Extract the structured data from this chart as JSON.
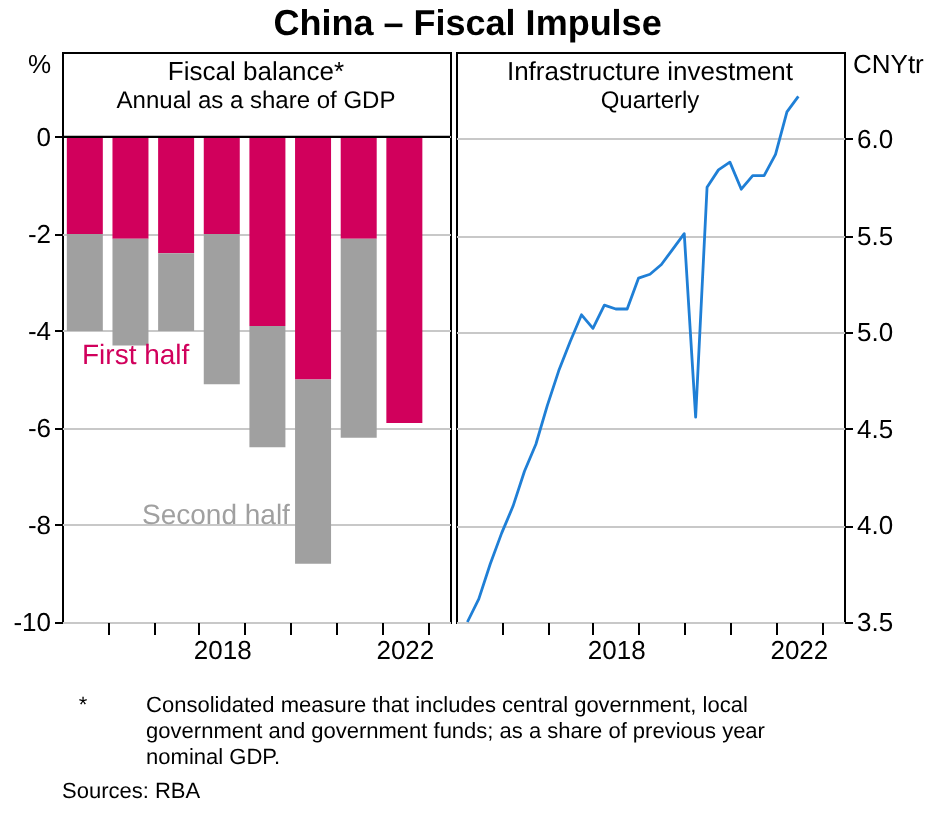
{
  "chart_data": [
    {
      "type": "bar",
      "title": "China – Fiscal Impulse",
      "subtitle": "Fiscal balance*",
      "annotations": [
        "Annual as a share of GDP",
        "* Consolidated measure that includes central government, local government and government funds; as a share of previous year nominal GDP.",
        "Sources: RBA"
      ],
      "ylabel": "%",
      "stacked": true,
      "x": [
        2015.5,
        2016.5,
        2017.5,
        2018.5,
        2019.5,
        2020.5,
        2021.5,
        2022.5
      ],
      "series": [
        {
          "name": "First half",
          "color": "#d1005c",
          "values": [
            -2.0,
            -2.1,
            -2.4,
            -2.0,
            -3.9,
            -5.0,
            -2.1,
            -5.9
          ]
        },
        {
          "name": "Second half",
          "color": "#a0a0a0",
          "values": [
            -2.0,
            -2.2,
            -1.6,
            -3.1,
            -2.5,
            -3.8,
            -4.1,
            null
          ]
        }
      ],
      "xlim": [
        2015,
        2023.5
      ],
      "xticks": [
        {
          "value": 2016,
          "label": null
        },
        {
          "value": 2017,
          "label": null
        },
        {
          "value": 2018,
          "label": null
        },
        {
          "value": 2018.5,
          "label": "2018"
        },
        {
          "value": 2019,
          "label": null
        },
        {
          "value": 2020,
          "label": null
        },
        {
          "value": 2021,
          "label": null
        },
        {
          "value": 2022,
          "label": null
        },
        {
          "value": 2022.5,
          "label": "2022"
        },
        {
          "value": 2023,
          "label": null
        }
      ],
      "ylim": [
        -10,
        1.75
      ],
      "yticks": [
        -10,
        -8,
        -6,
        -4,
        -2,
        0
      ],
      "ref_lines": [
        {
          "axis": "y",
          "value": 0,
          "color": "#000000"
        }
      ],
      "grid": "y",
      "legend": false
    },
    {
      "type": "line",
      "subtitle": "Infrastructure investment",
      "annotations": [
        "Quarterly"
      ],
      "ylabel": "CNYtr",
      "x": [
        2015.25,
        2015.5,
        2015.75,
        2016.0,
        2016.25,
        2016.5,
        2016.75,
        2017.0,
        2017.25,
        2017.5,
        2017.75,
        2018.0,
        2018.25,
        2018.5,
        2018.75,
        2019.0,
        2019.25,
        2019.5,
        2019.75,
        2020.0,
        2020.25,
        2020.5,
        2020.75,
        2021.0,
        2021.25,
        2021.5,
        2021.75,
        2022.0,
        2022.25,
        2022.5
      ],
      "series": [
        {
          "color": "#1f7fd6",
          "values": [
            3.5,
            3.62,
            3.8,
            3.96,
            4.1,
            4.28,
            4.42,
            4.62,
            4.8,
            4.95,
            5.09,
            5.02,
            5.14,
            5.12,
            5.12,
            5.28,
            5.3,
            5.35,
            5.43,
            5.51,
            4.56,
            5.75,
            5.84,
            5.88,
            5.74,
            5.81,
            5.81,
            5.92,
            6.14,
            6.22
          ]
        }
      ],
      "xlim": [
        2015,
        2023.5
      ],
      "xticks": [
        {
          "value": 2016,
          "label": null
        },
        {
          "value": 2017,
          "label": null
        },
        {
          "value": 2018,
          "label": null
        },
        {
          "value": 2018.5,
          "label": "2018"
        },
        {
          "value": 2019,
          "label": null
        },
        {
          "value": 2020,
          "label": null
        },
        {
          "value": 2021,
          "label": null
        },
        {
          "value": 2022,
          "label": null
        },
        {
          "value": 2022.5,
          "label": "2022"
        },
        {
          "value": 2023,
          "label": null
        }
      ],
      "ylim": [
        3.5,
        6.45
      ],
      "yticks": [
        3.5,
        {
          "value": 4,
          "label": "4.0"
        },
        4.5,
        {
          "value": 5,
          "label": "5.0"
        },
        5.5,
        {
          "value": 6,
          "label": "6.0"
        }
      ],
      "grid": "y",
      "marker": "none",
      "line_style": "solid"
    }
  ]
}
